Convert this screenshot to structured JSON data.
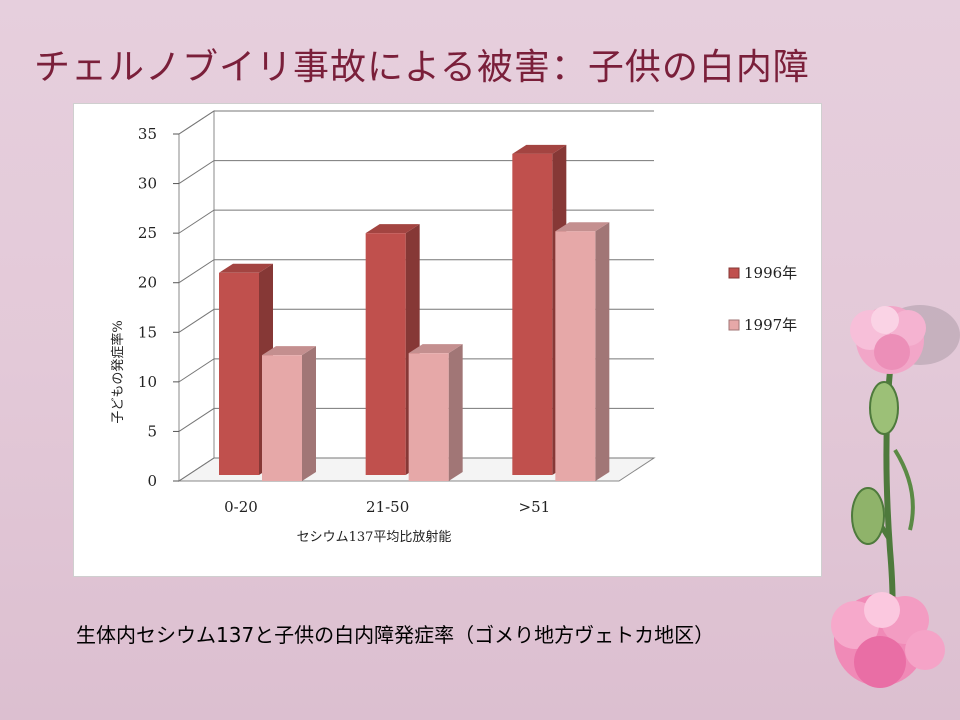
{
  "slide": {
    "title": "チェルノブイリ事故による被害：子供の白内障",
    "caption": "生体内セシウム137と子供の白内障発症率（ゴメり地方ヴェトカ地区）"
  },
  "chart_data": {
    "type": "bar",
    "style": "3d-clustered-column",
    "categories": [
      "0-20",
      "21-50",
      ">51"
    ],
    "series": [
      {
        "name": "1996年",
        "values": [
          21,
          25,
          33
        ],
        "color": "#c0504d"
      },
      {
        "name": "1997年",
        "values": [
          13.5,
          13.7,
          26
        ],
        "color": "#e6a8a8"
      }
    ],
    "xlabel": "セシウム137平均比放射能",
    "ylabel": "子どもの発症率%",
    "yticks": [
      0,
      5,
      10,
      15,
      20,
      25,
      30,
      35
    ],
    "ylim": [
      0,
      35
    ],
    "grid": true,
    "legend": "right"
  },
  "colors": {
    "title": "#7a1f3a",
    "background": "#e5cddc",
    "decoration": "pink carnation flowers"
  }
}
